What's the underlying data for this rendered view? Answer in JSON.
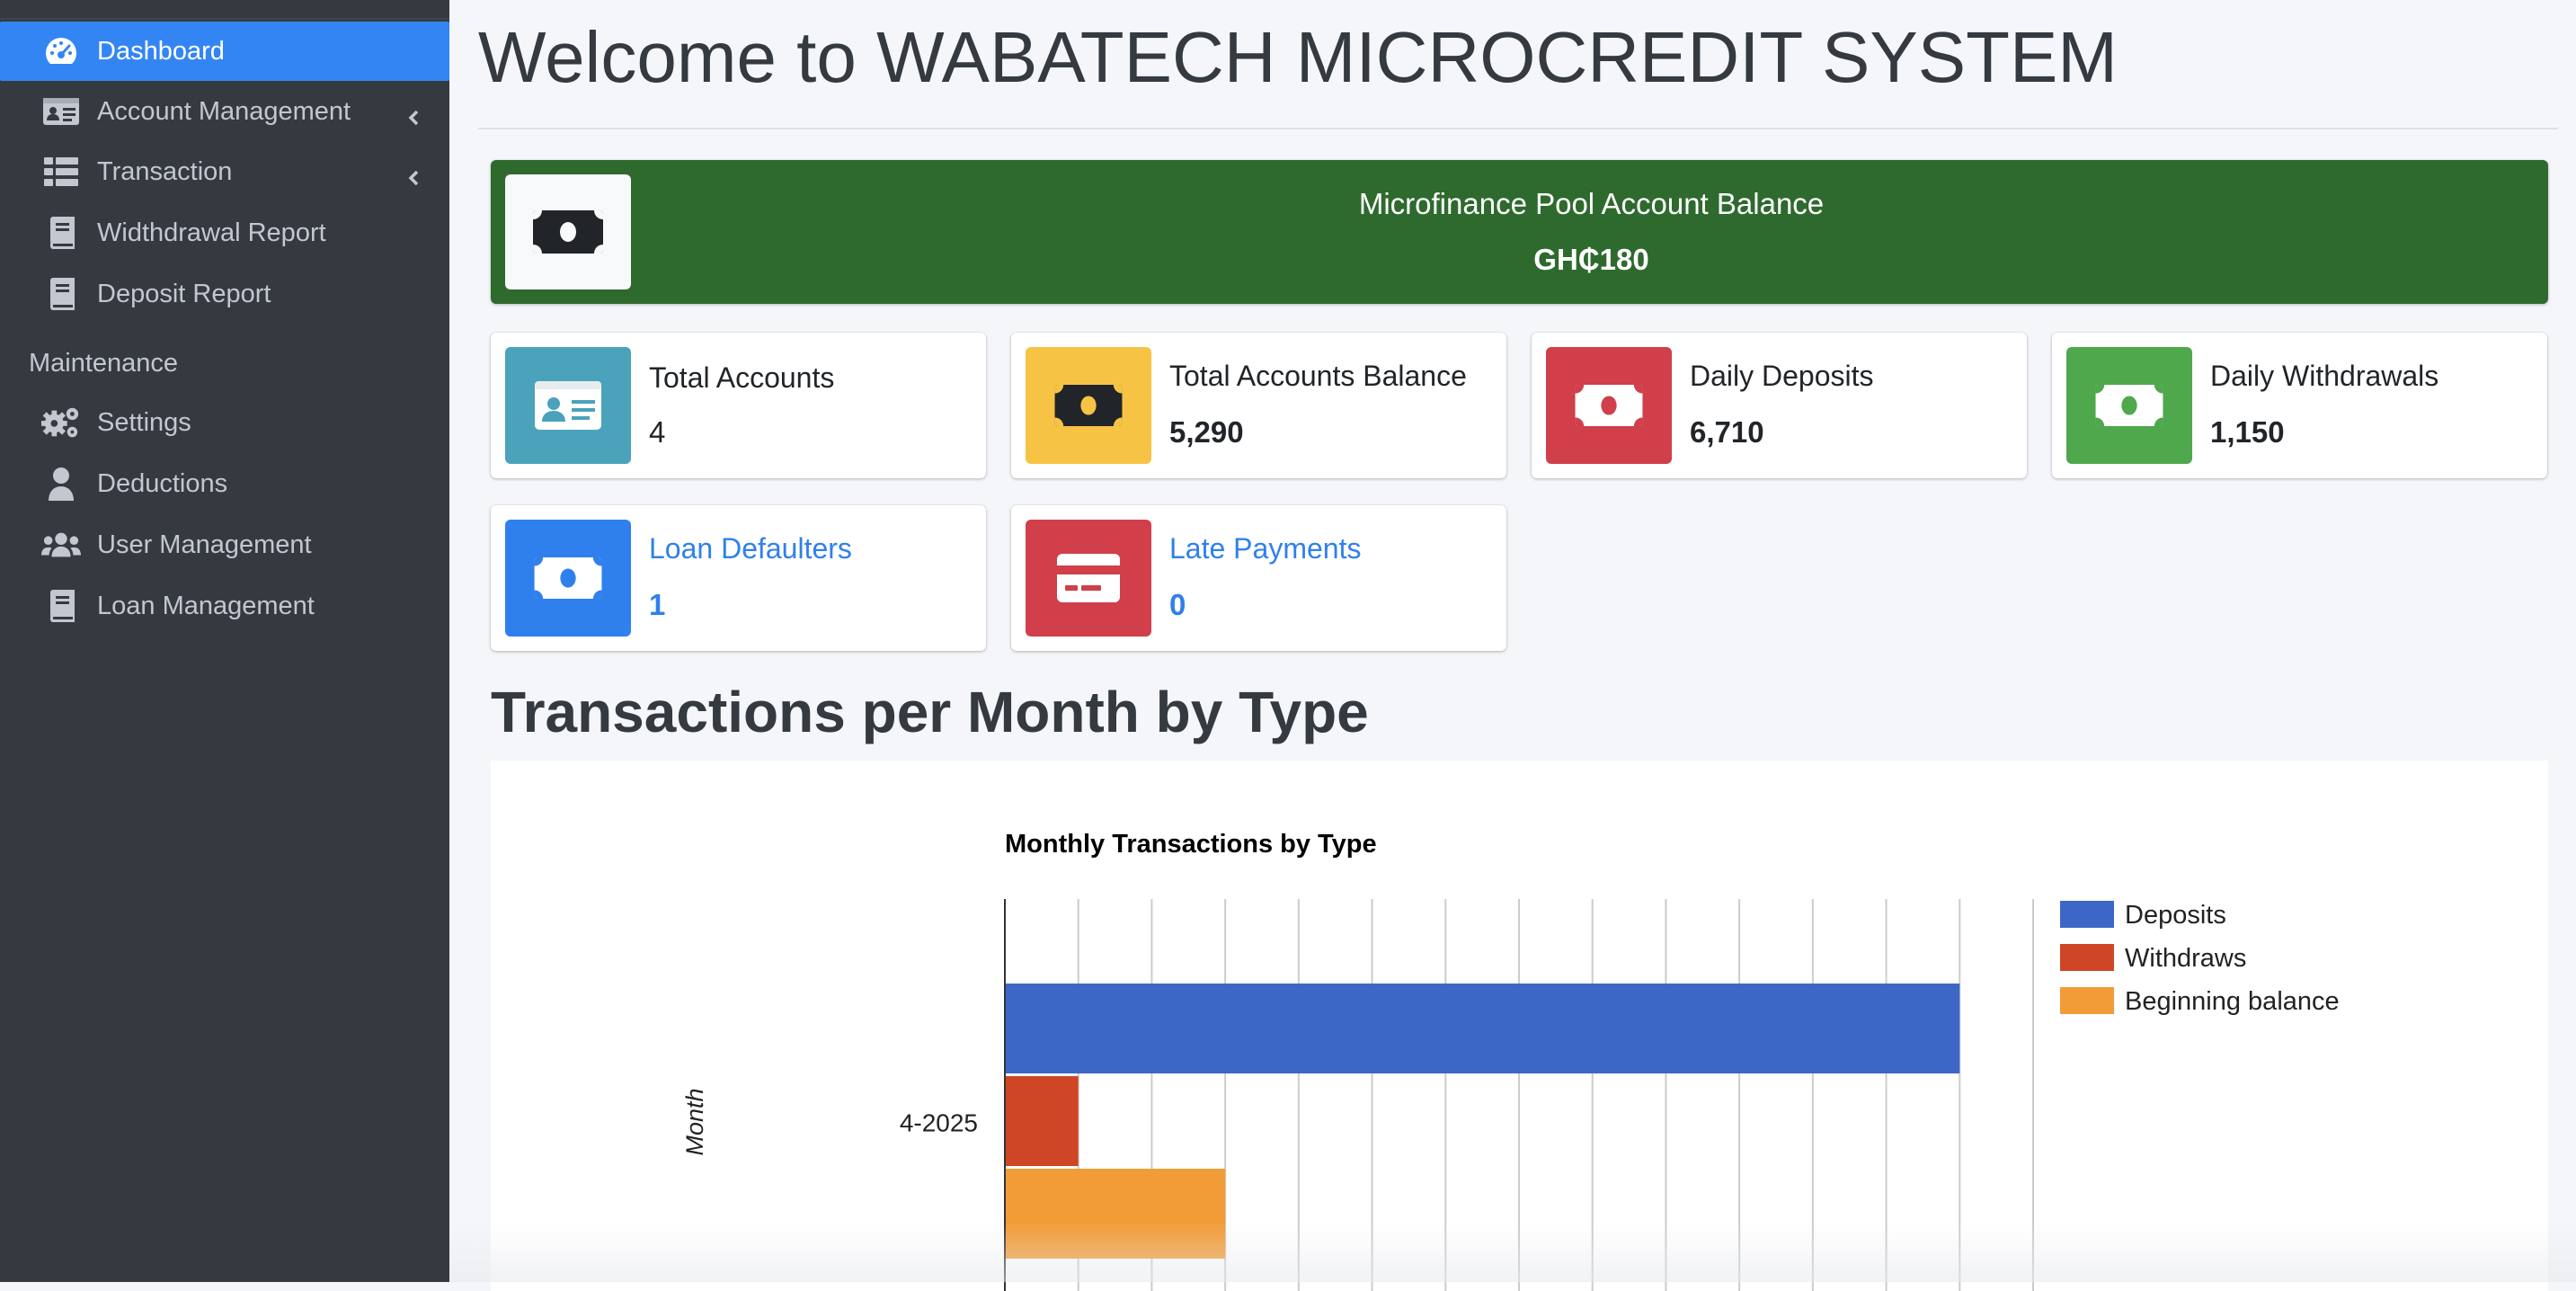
{
  "sidebar": {
    "items": [
      {
        "label": "Dashboard",
        "icon": "tachometer-icon",
        "active": true
      },
      {
        "label": "Account Management",
        "icon": "id-card-icon",
        "chevron": true
      },
      {
        "label": "Transaction",
        "icon": "table-list-icon",
        "chevron": true
      },
      {
        "label": "Widthdrawal Report",
        "icon": "book-icon"
      },
      {
        "label": "Deposit Report",
        "icon": "book-icon"
      }
    ],
    "header": "Maintenance",
    "maintenance": [
      {
        "label": "Settings",
        "icon": "gears-icon"
      },
      {
        "label": "Deductions",
        "icon": "user-icon"
      },
      {
        "label": "User Management",
        "icon": "users-icon"
      },
      {
        "label": "Loan Management",
        "icon": "book-icon"
      }
    ],
    "colors": {
      "bg": "#343a40",
      "active": "#3485f4",
      "text": "#c2c7d0"
    }
  },
  "main": {
    "title": "Welcome to WABATECH MICROCREDIT SYSTEM",
    "pool": {
      "label": "Microfinance Pool Account Balance",
      "value": "GH₵180",
      "color": "#2e6a2e"
    },
    "boxes": [
      {
        "title": "Total Accounts",
        "value": "4",
        "icon": "id-card-icon",
        "color": "#4aa3ba"
      },
      {
        "title": "Total Accounts Balance",
        "value": "5,290",
        "icon": "money-bill-icon",
        "color": "#f6c344"
      },
      {
        "title": "Daily Deposits",
        "value": "6,710",
        "icon": "money-bill-icon",
        "color": "#d03f4a"
      },
      {
        "title": "Daily Withdrawals",
        "value": "1,150",
        "icon": "money-bill-icon",
        "color": "#4fa84c"
      },
      {
        "title": "Loan Defaulters",
        "value": "1",
        "icon": "money-bill-icon",
        "color": "#2f80ed"
      },
      {
        "title": "Late Payments",
        "value": "0",
        "icon": "credit-card-icon",
        "color": "#d03f4a"
      }
    ],
    "section_title": "Transactions per Month by Type"
  },
  "chart_data": {
    "type": "bar",
    "orientation": "horizontal",
    "title": "Monthly Transactions by Type",
    "ylabel": "Month",
    "xlabel": "",
    "categories": [
      "4-2025"
    ],
    "series": [
      {
        "name": "Deposits",
        "values": [
          6500
        ],
        "color": "#3c67c7"
      },
      {
        "name": "Withdraws",
        "values": [
          500
        ],
        "color": "#cf4626"
      },
      {
        "name": "Beginning balance",
        "values": [
          1500
        ],
        "color": "#f29c38"
      }
    ],
    "xlim": [
      0,
      7000
    ],
    "grid": true,
    "legend": "right"
  }
}
